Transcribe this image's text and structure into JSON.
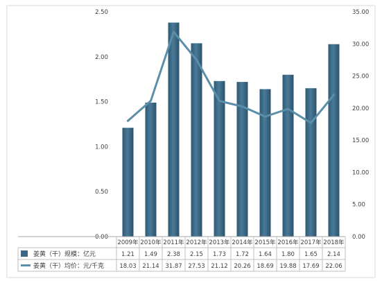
{
  "chart_data": {
    "type": "bar",
    "categories": [
      "2009年",
      "2010年",
      "2011年",
      "2012年",
      "2013年",
      "2014年",
      "2015年",
      "2016年",
      "2017年",
      "2018年"
    ],
    "series": [
      {
        "name": "姜黄（干）规模：亿元",
        "type": "bar",
        "axis": "left",
        "color": "#3b6885",
        "values": [
          1.21,
          1.49,
          2.38,
          2.15,
          1.73,
          1.72,
          1.64,
          1.8,
          1.65,
          2.14
        ],
        "labels": [
          "1.21",
          "1.49",
          "2.38",
          "2.15",
          "1.73",
          "1.72",
          "1.64",
          "1.80",
          "1.65",
          "2.14"
        ]
      },
      {
        "name": "姜黄（干）均价：元/千克",
        "type": "line",
        "axis": "right",
        "color": "#5b8ea8",
        "values": [
          18.03,
          21.14,
          31.87,
          27.53,
          21.12,
          20.26,
          18.69,
          19.88,
          17.69,
          22.06
        ],
        "labels": [
          "18.03",
          "21.14",
          "31.87",
          "27.53",
          "21.12",
          "20.26",
          "18.69",
          "19.88",
          "17.69",
          "22.06"
        ]
      }
    ],
    "y_left": {
      "lim": [
        0,
        2.5
      ],
      "ticks": [
        0,
        0.5,
        1.0,
        1.5,
        2.0,
        2.5
      ],
      "tick_labels": [
        "0.00",
        "0.50",
        "1.00",
        "1.50",
        "2.00",
        "2.50"
      ]
    },
    "y_right": {
      "lim": [
        0,
        35
      ],
      "ticks": [
        0,
        5,
        10,
        15,
        20,
        25,
        30,
        35
      ],
      "tick_labels": [
        "0.00",
        "5.00",
        "10.00",
        "15.00",
        "20.00",
        "25.00",
        "30.00",
        "35.00"
      ]
    },
    "grid": false,
    "legend": "data-table-below"
  }
}
